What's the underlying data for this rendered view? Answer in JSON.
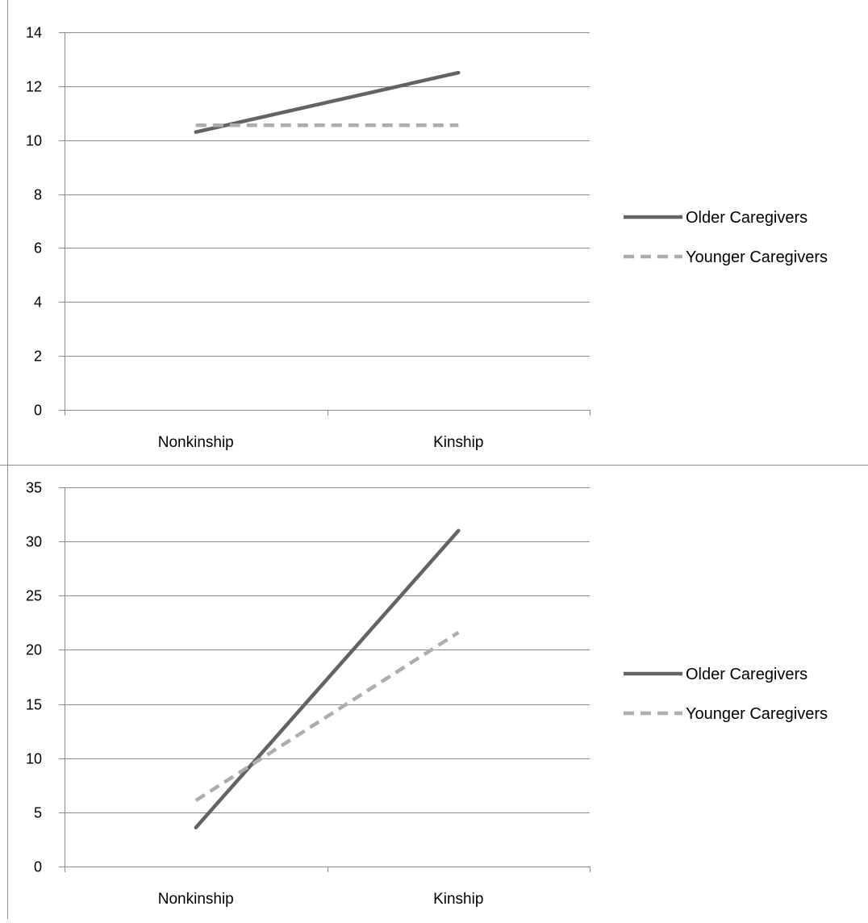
{
  "chart_data": [
    {
      "type": "line",
      "categories": [
        "Nonkinship",
        "Kinship"
      ],
      "ylim": [
        0,
        14
      ],
      "yticks": [
        0,
        2,
        4,
        6,
        8,
        10,
        12,
        14
      ],
      "grid": true,
      "legend_position": "right",
      "series": [
        {
          "name": "Older Caregivers",
          "values": [
            10.3,
            12.5
          ],
          "color": "#636363",
          "style": "solid"
        },
        {
          "name": "Younger Caregivers",
          "values": [
            10.55,
            10.55
          ],
          "color": "#adadad",
          "style": "dashed"
        }
      ]
    },
    {
      "type": "line",
      "categories": [
        "Nonkinship",
        "Kinship"
      ],
      "ylim": [
        0,
        35
      ],
      "yticks": [
        0,
        5,
        10,
        15,
        20,
        25,
        30,
        35
      ],
      "grid": true,
      "legend_position": "right",
      "series": [
        {
          "name": "Older Caregivers",
          "values": [
            3.6,
            31
          ],
          "color": "#636363",
          "style": "solid"
        },
        {
          "name": "Younger Caregivers",
          "values": [
            6.1,
            21.6
          ],
          "color": "#adadad",
          "style": "dashed"
        }
      ]
    }
  ]
}
